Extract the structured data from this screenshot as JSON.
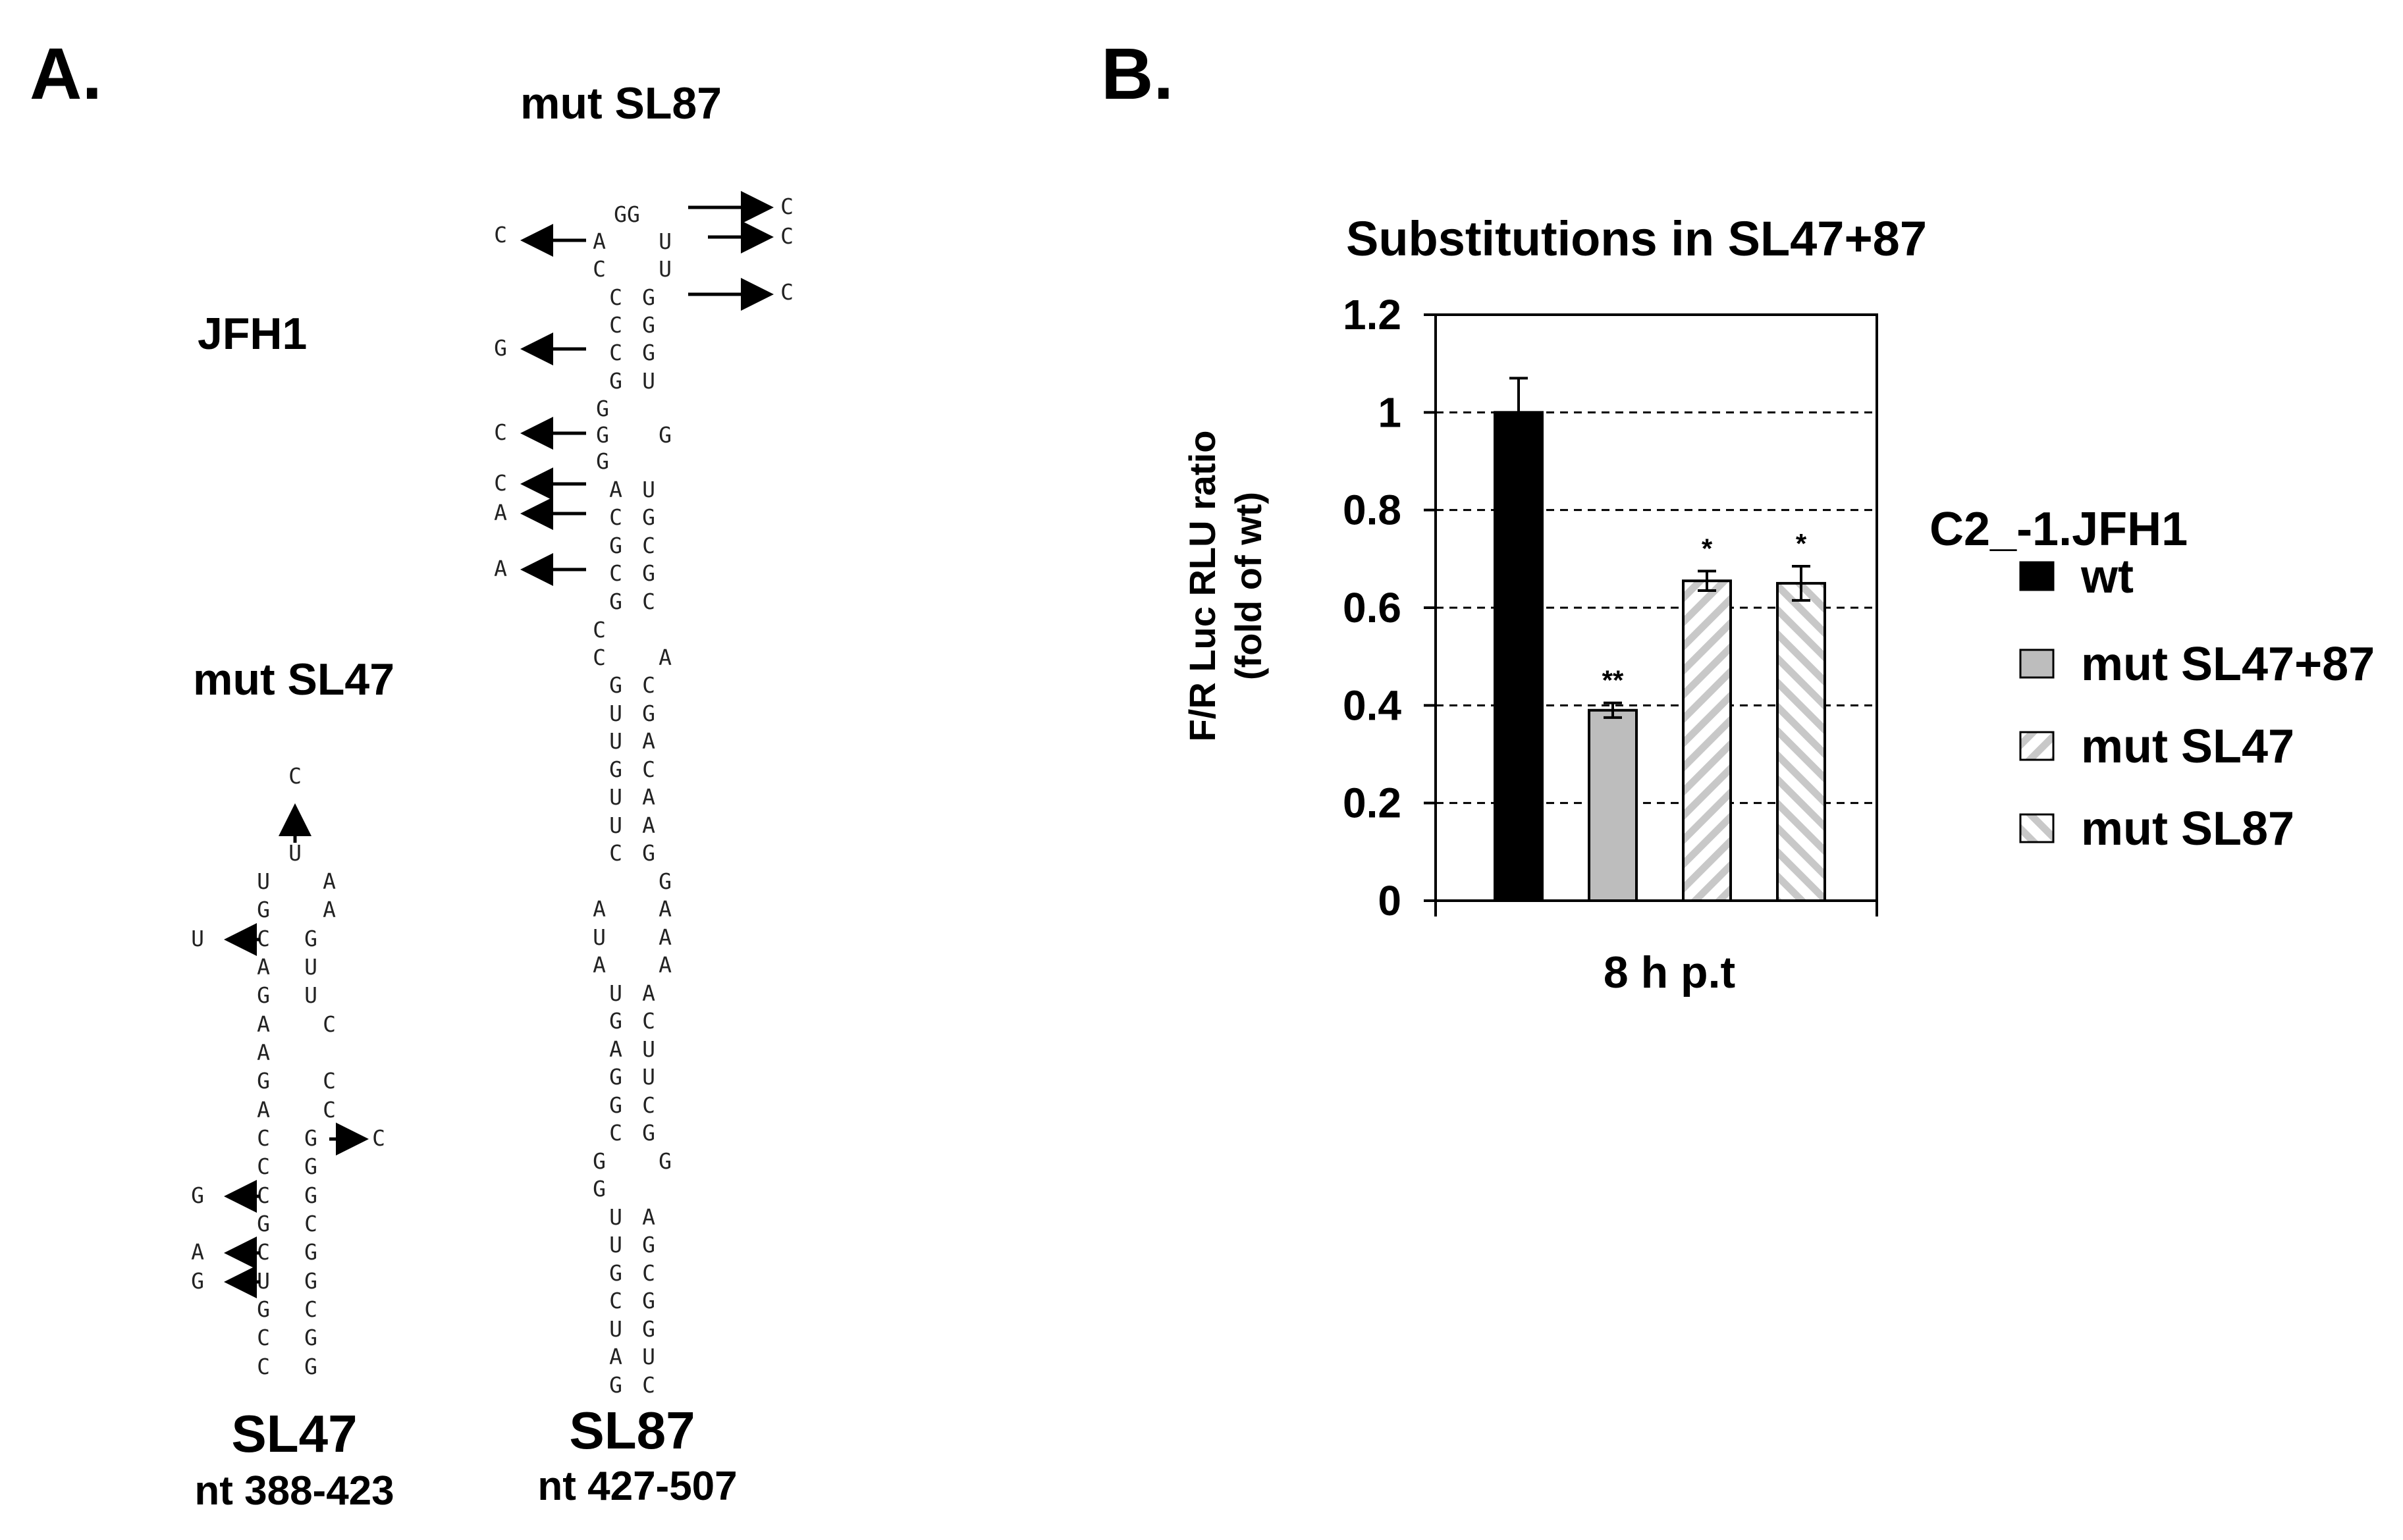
{
  "panel_a": {
    "label": "A.",
    "jfh1_label": "JFH1",
    "mut_sl47_label": "mut SL47",
    "mut_sl87_label": "mut SL87",
    "sl47_name": "SL47",
    "sl47_range": "nt 388-423",
    "sl87_name": "SL87",
    "sl87_range": "nt 427-507"
  },
  "chart_data": {
    "type": "bar",
    "panel_label": "B.",
    "title": "Substitutions in SL47+87",
    "ylabel_line1": "F/R Luc RLU ratio",
    "ylabel_line2": "(fold of wt)",
    "xlabel": "8 h p.t",
    "ylim": [
      0,
      1.2
    ],
    "yticks": [
      "0",
      "0.2",
      "0.4",
      "0.6",
      "0.8",
      "1",
      "1.2"
    ],
    "grid": "dashed horizontal",
    "legend_title": "C2_-1.JFH1",
    "legend_position": "right",
    "series": [
      {
        "name": "wt",
        "value": 1.0,
        "error": 0.07,
        "significance": "",
        "fill": "#000000"
      },
      {
        "name": "mut SL47+87",
        "value": 0.39,
        "error": 0.015,
        "significance": "**",
        "fill": "#bdbdbd"
      },
      {
        "name": "mut SL47",
        "value": 0.655,
        "error": 0.02,
        "significance": "*",
        "fill": "hatch-back"
      },
      {
        "name": "mut SL87",
        "value": 0.65,
        "error": 0.035,
        "significance": "*",
        "fill": "hatch-fwd"
      }
    ]
  }
}
